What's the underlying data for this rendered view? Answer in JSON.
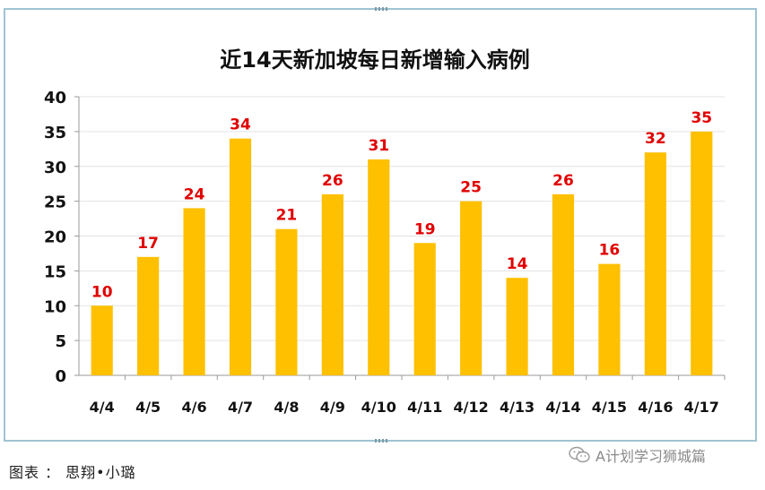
{
  "chart_data": {
    "type": "bar",
    "title": "近14天新加坡每日新增输入病例",
    "categories": [
      "4/4",
      "4/5",
      "4/6",
      "4/7",
      "4/8",
      "4/9",
      "4/10",
      "4/11",
      "4/12",
      "4/13",
      "4/14",
      "4/15",
      "4/16",
      "4/17"
    ],
    "values": [
      10,
      17,
      24,
      34,
      21,
      26,
      31,
      19,
      25,
      14,
      26,
      16,
      32,
      35
    ],
    "ylim": [
      0,
      40
    ],
    "yticks": [
      0,
      5,
      10,
      15,
      20,
      25,
      30,
      35,
      40
    ],
    "xlabel": "",
    "ylabel": "",
    "grid": true,
    "bar_color": "#FFC000",
    "label_color": "#E00000"
  },
  "caption": "图表 ： 思翔•小璐",
  "watermark": {
    "text": "A计划学习狮城篇",
    "icon": "wechat-icon"
  }
}
